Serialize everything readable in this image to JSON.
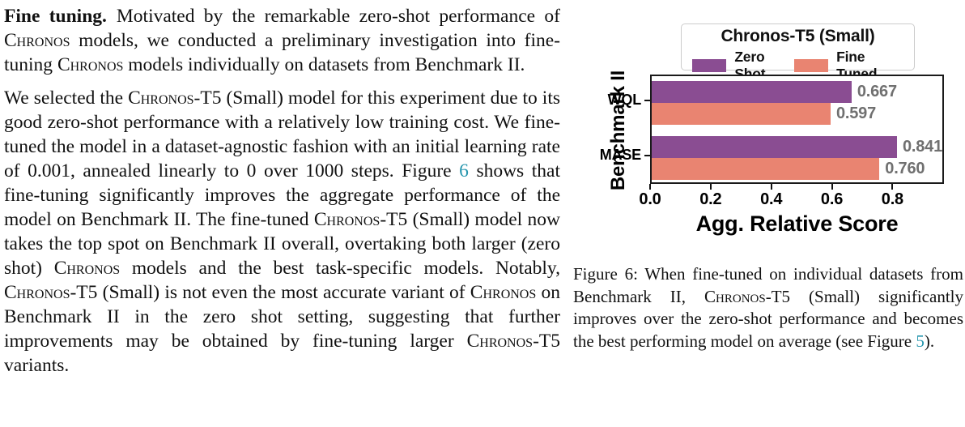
{
  "colors": {
    "text": "#111111",
    "link_teal": "#2696AE",
    "chart_frame": "#1a1a1a",
    "value_label_gray": "#707070",
    "legend_border": "#cccccc"
  },
  "article": {
    "para1": {
      "heading": "Fine tuning.",
      "seg1": "Motivated by the remarkable zero-shot performance of ",
      "sc1": "Chronos",
      "seg2": " models, we conducted a preliminary investigation into fine-tuning ",
      "sc2": "Chronos",
      "seg3": " models individually on datasets from Benchmark II."
    },
    "para2": {
      "seg1": "We selected the ",
      "sc1": "Chronos",
      "seg2": "-T5 (Small) model for this experiment due to its good zero-shot performance with a relatively low training cost. We fine-tuned the model in a dataset-agnostic fashion with an initial learning rate of 0.001, annealed linearly to 0 over 1000 steps. Figure ",
      "ref1": "6",
      "seg3": " shows that fine-tuning significantly improves the aggregate performance of the model on Benchmark II. The fine-tuned ",
      "sc2": "Chronos",
      "seg4": "-T5 (Small) model now takes the top spot on Benchmark II overall, overtaking both larger (zero shot) ",
      "sc3": "Chronos",
      "seg5": " models and the best task-specific models. Notably, ",
      "sc4": "Chronos",
      "seg6": "-T5 (Small) is not even the most accurate variant of ",
      "sc5": "Chronos",
      "seg7": " on Benchmark II in the zero shot setting, suggesting that further improvements may be obtained by fine-tuning larger ",
      "sc6": "Chronos",
      "seg8": "-T5 variants."
    }
  },
  "figure_caption": {
    "seg1": "Figure 6: When fine-tuned on individual datasets from Benchmark II, ",
    "sc1": "Chronos",
    "seg2": "-T5 (Small) significantly improves over the zero-shot performance and becomes the best performing model on average (see Figure ",
    "ref1": "5",
    "seg3": ")."
  },
  "chart_data": {
    "type": "bar",
    "orientation": "horizontal",
    "title": "Chronos-T5 (Small)",
    "categories": [
      "WQL",
      "MASE"
    ],
    "series": [
      {
        "name": "Zero Shot",
        "color": "#8A4D92",
        "values": [
          0.667,
          0.841
        ],
        "value_labels": [
          "0.667",
          "0.841"
        ]
      },
      {
        "name": "Fine Tuned",
        "color": "#E98471",
        "values": [
          0.597,
          0.76
        ],
        "value_labels": [
          "0.597",
          "0.760"
        ]
      }
    ],
    "xlabel": "Agg. Relative Score",
    "ylabel": "Benchmark II",
    "xlim": [
      0,
      0.97
    ],
    "xticks": [
      "0.0",
      "0.2",
      "0.4",
      "0.6",
      "0.8"
    ],
    "grid": false,
    "legend_position": "top"
  }
}
